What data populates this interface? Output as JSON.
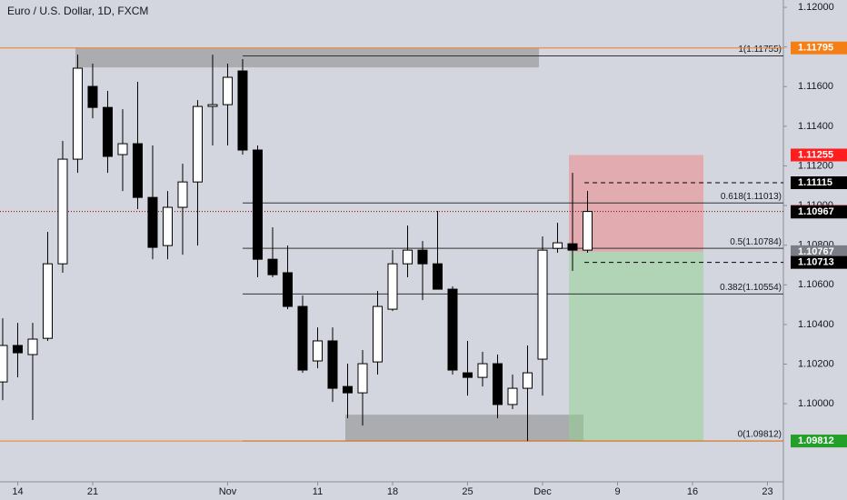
{
  "chart_data": {
    "type": "candlestick",
    "title": "Euro / U.S. Dollar, 1D, FXCM",
    "x": [
      0,
      1,
      2,
      3,
      4,
      5,
      6,
      7,
      8,
      9,
      10,
      11,
      12,
      13,
      14,
      15,
      16,
      17,
      18,
      19,
      20,
      21,
      22,
      23,
      24,
      25,
      26,
      27,
      28,
      29,
      30,
      31,
      32,
      33,
      34,
      35,
      36,
      37,
      38,
      39
    ],
    "open": [
      1.1011,
      1.10294,
      1.10248,
      1.1033,
      1.10706,
      1.11234,
      1.11601,
      1.11495,
      1.11257,
      1.11312,
      1.11041,
      1.10798,
      1.10991,
      1.11119,
      1.115,
      1.11509,
      1.11679,
      1.1128,
      1.10729,
      1.10661,
      1.10491,
      1.10216,
      1.10317,
      1.10087,
      1.10055,
      1.10211,
      1.10477,
      1.10706,
      1.10775,
      1.10706,
      1.10578,
      1.10156,
      1.10133,
      1.10202,
      1.09996,
      1.10078,
      1.10225,
      1.10784,
      1.10807,
      1.10775
    ],
    "high": [
      1.10431,
      1.10408,
      1.10408,
      1.10867,
      1.11326,
      1.11761,
      1.11716,
      1.11578,
      1.11486,
      1.11624,
      1.11303,
      1.11073,
      1.11211,
      1.11532,
      1.11761,
      1.11716,
      1.11739,
      1.11303,
      1.1089,
      1.10798,
      1.10546,
      1.10385,
      1.10385,
      1.10202,
      1.10271,
      1.10569,
      1.10775,
      1.10899,
      1.10821,
      1.10973,
      1.10592,
      1.10317,
      1.10262,
      1.10248,
      1.10147,
      1.10294,
      1.10844,
      1.10913,
      1.11165,
      1.11073
    ],
    "low": [
      1.10018,
      1.10133,
      1.09918,
      1.10317,
      1.10661,
      1.11165,
      1.1144,
      1.11165,
      1.11073,
      1.10982,
      1.10729,
      1.10729,
      1.10752,
      1.10798,
      1.11303,
      1.11303,
      1.11257,
      1.10638,
      1.10638,
      1.10477,
      1.10156,
      1.10179,
      1.10009,
      1.09927,
      1.0989,
      1.10147,
      1.10468,
      1.10638,
      1.10523,
      1.10578,
      1.10147,
      1.10041,
      1.10087,
      1.09927,
      1.09973,
      1.09812,
      1.10041,
      1.10762,
      1.1067,
      1.10762
    ],
    "close": [
      1.10294,
      1.10257,
      1.10326,
      1.10706,
      1.11234,
      1.11693,
      1.11495,
      1.11248,
      1.11312,
      1.11041,
      1.10789,
      1.10991,
      1.11119,
      1.115,
      1.11509,
      1.11647,
      1.1128,
      1.10729,
      1.10651,
      1.10491,
      1.1017,
      1.10317,
      1.10078,
      1.10055,
      1.10202,
      1.10491,
      1.10706,
      1.10775,
      1.10706,
      1.10578,
      1.1017,
      1.10133,
      1.10202,
      1.09996,
      1.10078,
      1.10156,
      1.10775,
      1.10812,
      1.10775,
      1.1097
    ],
    "up_color": "#ffffff",
    "down_color": "#000000",
    "xlim": [
      -0.18,
      52.06
    ],
    "ylim": [
      1.09606,
      1.12037
    ],
    "xticks": [
      {
        "value": 1,
        "label": "14"
      },
      {
        "value": 6,
        "label": "21"
      },
      {
        "value": 15,
        "label": "Nov"
      },
      {
        "value": 21,
        "label": "11"
      },
      {
        "value": 26,
        "label": "18"
      },
      {
        "value": 31,
        "label": "25"
      },
      {
        "value": 36,
        "label": "Dec"
      },
      {
        "value": 41,
        "label": "9"
      },
      {
        "value": 46,
        "label": "16"
      },
      {
        "value": 51,
        "label": "23"
      }
    ],
    "yticks": [
      {
        "value": 1.1,
        "label": "1.10000"
      },
      {
        "value": 1.102,
        "label": "1.10200"
      },
      {
        "value": 1.104,
        "label": "1.10400"
      },
      {
        "value": 1.106,
        "label": "1.10600"
      },
      {
        "value": 1.108,
        "label": "1.10800"
      },
      {
        "value": 1.11,
        "label": "1.11000"
      },
      {
        "value": 1.112,
        "label": "1.11200"
      },
      {
        "value": 1.114,
        "label": "1.11400"
      },
      {
        "value": 1.116,
        "label": "1.11600"
      },
      {
        "value": 1.118,
        "label": "1.11800"
      },
      {
        "value": 1.12,
        "label": "1.12000"
      }
    ],
    "zones": [
      {
        "x": [
          4.85,
          35.76
        ],
        "y": [
          1.11697,
          1.11795
        ]
      },
      {
        "x": [
          22.85,
          38.73
        ],
        "y": [
          1.09812,
          1.09945
        ]
      }
    ],
    "position": {
      "x": [
        37.76,
        46.73
      ],
      "entry": 1.10767,
      "target": 1.11255,
      "stop": 1.09812
    },
    "fib": {
      "start": 16,
      "levels": [
        {
          "value": 1.11755,
          "label": "1(1.11755)"
        },
        {
          "value": 1.11013,
          "label": "0.618(1.11013)"
        },
        {
          "value": 1.10784,
          "label": "0.5(1.10784)"
        },
        {
          "value": 1.10554,
          "label": "0.382(1.10554)"
        },
        {
          "value": 1.09812,
          "label": "0(1.09812)"
        }
      ]
    },
    "price_labels": [
      {
        "value": 1.11795,
        "color": "#f57f17",
        "line": "solid"
      },
      {
        "value": 1.11255,
        "color": "#ff1e1e"
      },
      {
        "value": 1.11115,
        "color": "#000000",
        "line": "dashed"
      },
      {
        "value": 1.1097,
        "label": "1.10970",
        "color": "#8b0000",
        "line": "dotted"
      },
      {
        "value": 1.10967,
        "color": "#000000"
      },
      {
        "value": 1.10767,
        "color": "#7a7d85"
      },
      {
        "value": 1.10713,
        "color": "#000000",
        "line": "dashed"
      },
      {
        "value": 1.09812,
        "color": "#f57f17",
        "line": "solid"
      },
      {
        "value": 1.09812,
        "color": "#22a02a"
      }
    ]
  }
}
